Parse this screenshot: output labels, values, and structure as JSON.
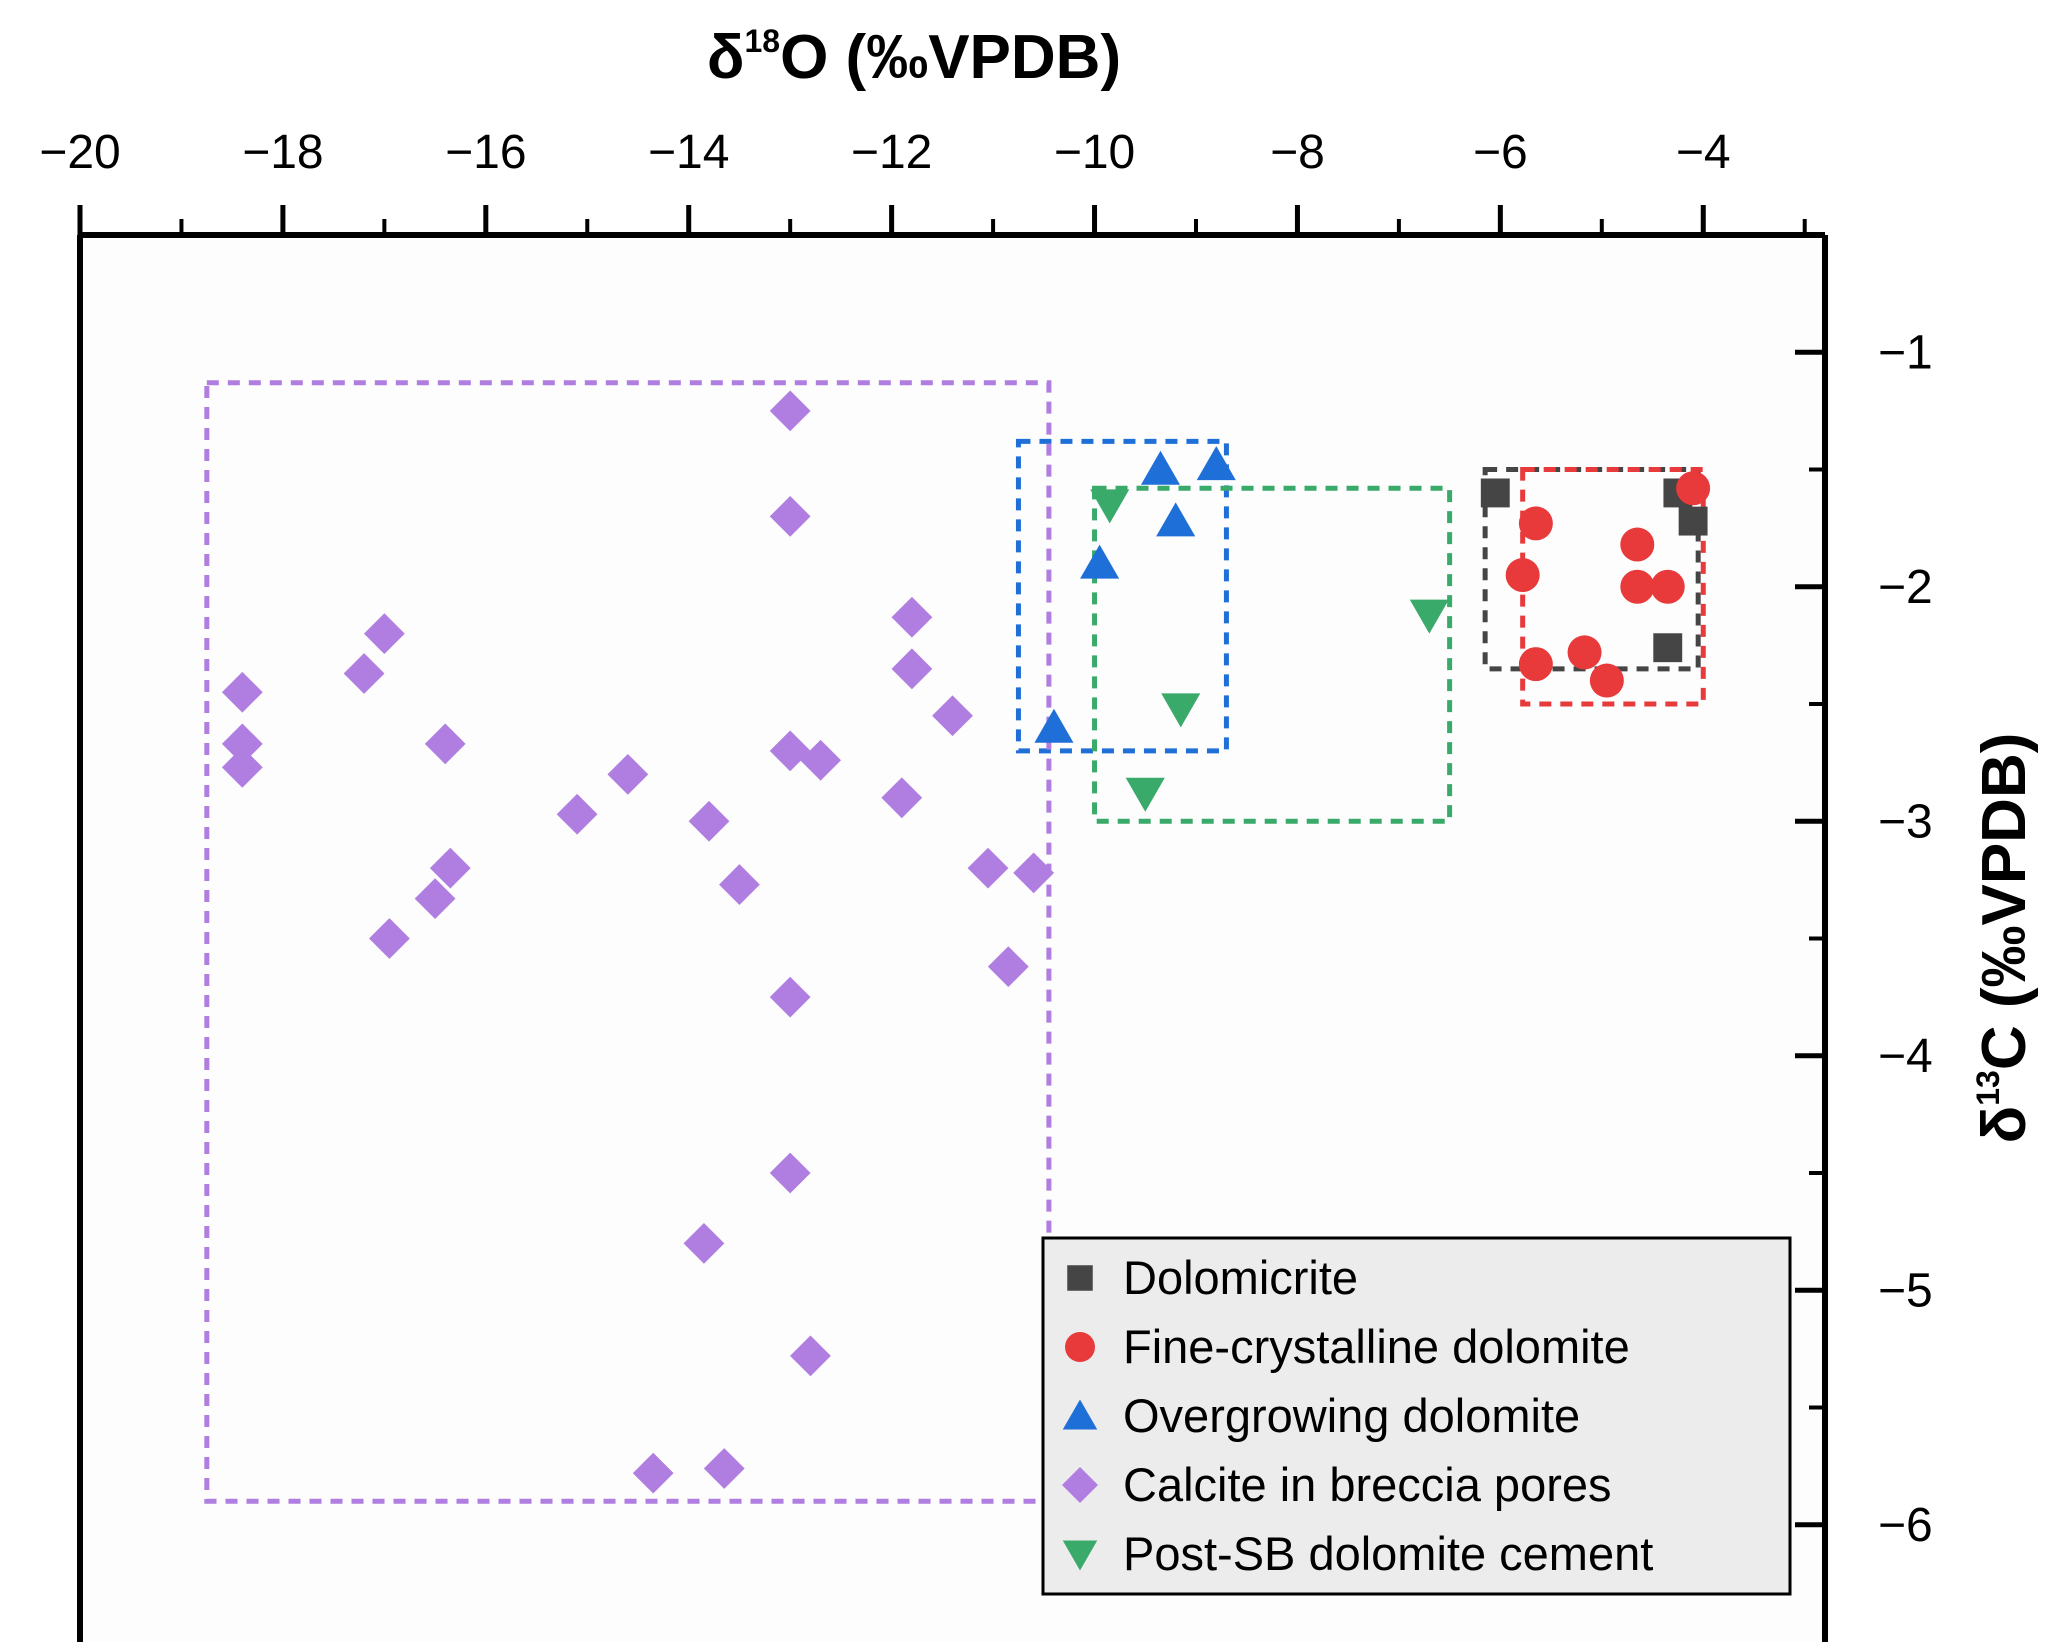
{
  "chart_data": {
    "type": "scatter",
    "title": "",
    "xlabel": "δ18O (‰VPDB)",
    "xlabel_parts": {
      "prefix": "δ",
      "sup": "18",
      "suffix": "O (‰VPDB)"
    },
    "ylabel": "δ13C (‰VPDB)",
    "ylabel_parts": {
      "prefix": "δ",
      "sup": "13",
      "suffix": "C (‰VPDB)"
    },
    "xlim": [
      -20,
      -2.8
    ],
    "ylim": [
      -6.5,
      -0.5
    ],
    "x_axis_position": "top",
    "y_axis_position": "right",
    "x_ticks": [
      -20,
      -18,
      -16,
      -14,
      -12,
      -10,
      -8,
      -6,
      -4
    ],
    "x_tick_labels": [
      "−20",
      "−18",
      "−16",
      "−14",
      "−12",
      "−10",
      "−8",
      "−6",
      "−4"
    ],
    "y_ticks": [
      -1,
      -2,
      -3,
      -4,
      -5,
      -6
    ],
    "y_tick_labels": [
      "−1",
      "−2",
      "−3",
      "−4",
      "−5",
      "−6"
    ],
    "grid": false,
    "legend_position": "bottom-right",
    "series": [
      {
        "name": "Dolomicrite",
        "marker": "square",
        "color": "#454545",
        "points": [
          {
            "x": -6.05,
            "y": -1.6
          },
          {
            "x": -4.25,
            "y": -1.6
          },
          {
            "x": -4.1,
            "y": -1.72
          },
          {
            "x": -4.35,
            "y": -2.26
          }
        ],
        "envelope": {
          "x": [
            -6.15,
            -4.05
          ],
          "y": [
            -2.35,
            -1.5
          ]
        }
      },
      {
        "name": "Fine-crystalline dolomite",
        "marker": "circle",
        "color": "#e8393b",
        "points": [
          {
            "x": -4.1,
            "y": -1.58
          },
          {
            "x": -5.65,
            "y": -1.73
          },
          {
            "x": -4.65,
            "y": -1.82
          },
          {
            "x": -5.78,
            "y": -1.95
          },
          {
            "x": -4.65,
            "y": -2.0
          },
          {
            "x": -4.35,
            "y": -2.0
          },
          {
            "x": -5.65,
            "y": -2.33
          },
          {
            "x": -5.17,
            "y": -2.28
          },
          {
            "x": -4.95,
            "y": -2.4
          }
        ],
        "envelope": {
          "x": [
            -5.78,
            -4.0
          ],
          "y": [
            -2.5,
            -1.5
          ]
        }
      },
      {
        "name": "Overgrowing dolomite",
        "marker": "triangle-up",
        "color": "#1f6fd8",
        "points": [
          {
            "x": -9.35,
            "y": -1.5
          },
          {
            "x": -8.8,
            "y": -1.48
          },
          {
            "x": -9.2,
            "y": -1.72
          },
          {
            "x": -9.95,
            "y": -1.9
          },
          {
            "x": -10.4,
            "y": -2.6
          }
        ],
        "envelope": {
          "x": [
            -10.75,
            -8.7
          ],
          "y": [
            -2.7,
            -1.38
          ]
        }
      },
      {
        "name": "Calcite in breccia pores",
        "marker": "diamond",
        "color": "#b07ee0",
        "points": [
          {
            "x": -13.0,
            "y": -1.25
          },
          {
            "x": -13.0,
            "y": -1.7
          },
          {
            "x": -11.8,
            "y": -2.13
          },
          {
            "x": -17.0,
            "y": -2.2
          },
          {
            "x": -17.2,
            "y": -2.37
          },
          {
            "x": -11.8,
            "y": -2.35
          },
          {
            "x": -18.4,
            "y": -2.45
          },
          {
            "x": -11.4,
            "y": -2.55
          },
          {
            "x": -16.4,
            "y": -2.67
          },
          {
            "x": -18.4,
            "y": -2.67
          },
          {
            "x": -13.0,
            "y": -2.7
          },
          {
            "x": -12.7,
            "y": -2.74
          },
          {
            "x": -18.4,
            "y": -2.77
          },
          {
            "x": -14.6,
            "y": -2.8
          },
          {
            "x": -11.9,
            "y": -2.9
          },
          {
            "x": -15.1,
            "y": -2.97
          },
          {
            "x": -13.8,
            "y": -3.0
          },
          {
            "x": -16.35,
            "y": -3.2
          },
          {
            "x": -11.05,
            "y": -3.2
          },
          {
            "x": -10.6,
            "y": -3.22
          },
          {
            "x": -13.5,
            "y": -3.27
          },
          {
            "x": -16.5,
            "y": -3.33
          },
          {
            "x": -16.95,
            "y": -3.5
          },
          {
            "x": -10.85,
            "y": -3.62
          },
          {
            "x": -13.0,
            "y": -3.75
          },
          {
            "x": -13.0,
            "y": -4.5
          },
          {
            "x": -13.85,
            "y": -4.8
          },
          {
            "x": -12.8,
            "y": -5.28
          },
          {
            "x": -14.35,
            "y": -5.78
          },
          {
            "x": -13.65,
            "y": -5.76
          }
        ],
        "envelope": {
          "x": [
            -18.75,
            -10.45
          ],
          "y": [
            -5.9,
            -1.13
          ]
        }
      },
      {
        "name": "Post-SB dolomite cement",
        "marker": "triangle-down",
        "color": "#3aaa6a",
        "points": [
          {
            "x": -9.85,
            "y": -1.65
          },
          {
            "x": -6.7,
            "y": -2.12
          },
          {
            "x": -9.15,
            "y": -2.52
          },
          {
            "x": -9.5,
            "y": -2.88
          }
        ],
        "envelope": {
          "x": [
            -10.0,
            -6.5
          ],
          "y": [
            -3.0,
            -1.58
          ]
        }
      }
    ]
  }
}
